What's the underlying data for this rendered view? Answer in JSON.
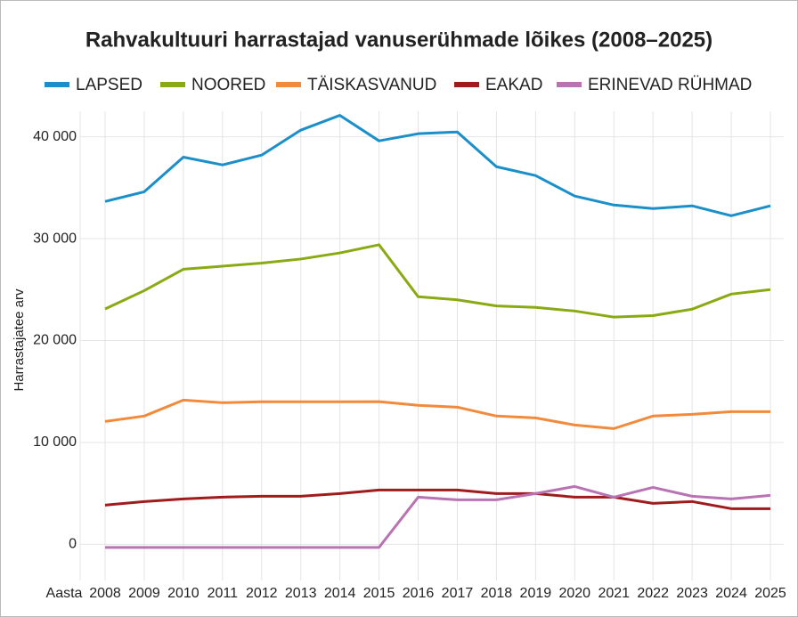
{
  "chart_data": {
    "type": "line",
    "title": "Rahvakultuuri harrastajad vanuserühmade lõikes (2008–2025)",
    "y_label": "Harrastajatee arv",
    "x_label": "Aasta",
    "categories": [
      "2008",
      "2009",
      "2010",
      "2011",
      "2012",
      "2013",
      "2014",
      "2015",
      "2016",
      "2017",
      "2018",
      "2019",
      "2020",
      "2021",
      "2022",
      "2023",
      "2024",
      "2025"
    ],
    "ylim": [
      -2500,
      42500
    ],
    "yticks": [
      0,
      {
        "value": 10000,
        "label": "10 000"
      },
      {
        "value": 20000,
        "label": "20 000"
      },
      {
        "value": 30000,
        "label": "30 000"
      },
      {
        "value": 40000,
        "label": "40 000"
      }
    ],
    "grid": true,
    "legend": "top",
    "series": [
      {
        "name": "LAPSED",
        "color": "#1a8fc9",
        "values": [
          33650,
          34600,
          38000,
          37240,
          38200,
          40650,
          42100,
          39600,
          40300,
          40470,
          37060,
          36190,
          34180,
          33300,
          32950,
          33220,
          32250,
          33220
        ]
      },
      {
        "name": "NOORED",
        "color": "#8aaa14",
        "values": [
          23100,
          24900,
          27000,
          27300,
          27600,
          28000,
          28600,
          29400,
          24300,
          24000,
          23400,
          23250,
          22900,
          22300,
          22450,
          23080,
          24560,
          25000
        ]
      },
      {
        "name": "TÄISKASVANUD",
        "color": "#f28a3c",
        "values": [
          12060,
          12590,
          14160,
          13900,
          13990,
          13990,
          13990,
          14000,
          13640,
          13460,
          12590,
          12410,
          11710,
          11360,
          12590,
          12760,
          13020,
          13020
        ]
      },
      {
        "name": "EAKAD",
        "color": "#a01b1b",
        "values": [
          3850,
          4200,
          4460,
          4630,
          4720,
          4720,
          4980,
          5330,
          5330,
          5330,
          4980,
          4980,
          4630,
          4630,
          4020,
          4200,
          3500,
          3500
        ]
      },
      {
        "name": "ERINEVAD RÜHMAD",
        "color": "#b873b3",
        "values": [
          -300,
          -300,
          -300,
          -300,
          -300,
          -300,
          -300,
          -300,
          4630,
          4370,
          4370,
          4980,
          5680,
          4630,
          5590,
          4720,
          4460,
          4810
        ]
      }
    ]
  }
}
